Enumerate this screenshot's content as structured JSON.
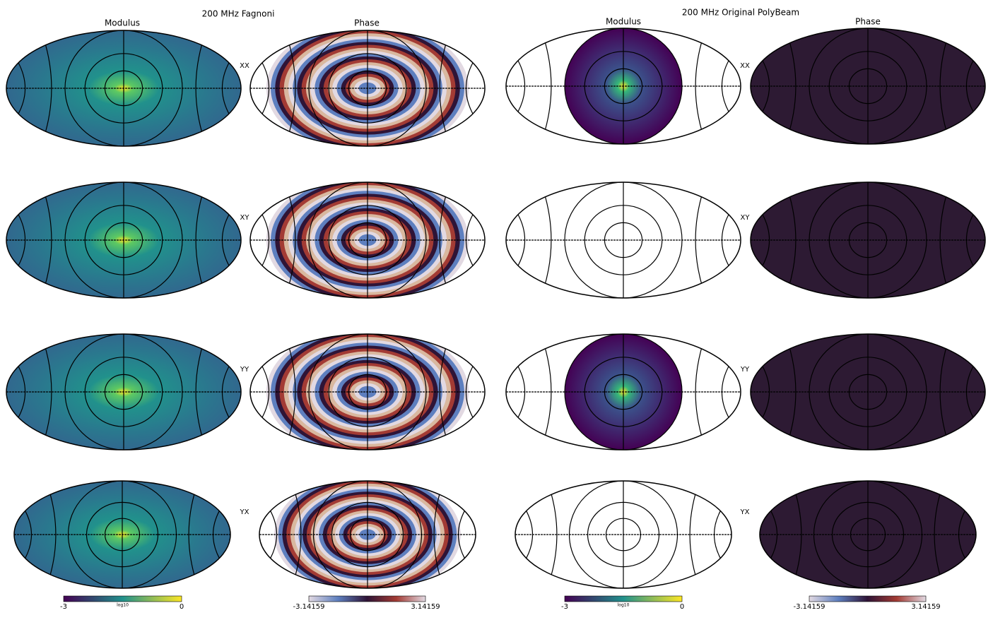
{
  "panels": [
    {
      "title": "200 MHz Fagnoni",
      "columns": [
        "Modulus",
        "Phase"
      ],
      "row_labels": [
        "XX",
        "XY",
        "YY",
        "YX"
      ]
    },
    {
      "title": "200 MHz Original PolyBeam",
      "columns": [
        "Modulus",
        "Phase"
      ],
      "row_labels": [
        "XX",
        "XY",
        "YY",
        "YX"
      ]
    }
  ],
  "colorbars": [
    {
      "label": "log10",
      "ticks": [
        "-3",
        "0"
      ]
    },
    {
      "ticks": [
        "-3.14159",
        "3.14159"
      ]
    },
    {
      "label": "log10",
      "ticks": [
        "-3",
        "0"
      ]
    },
    {
      "ticks": [
        "-3.14159",
        "3.14159"
      ]
    }
  ]
}
